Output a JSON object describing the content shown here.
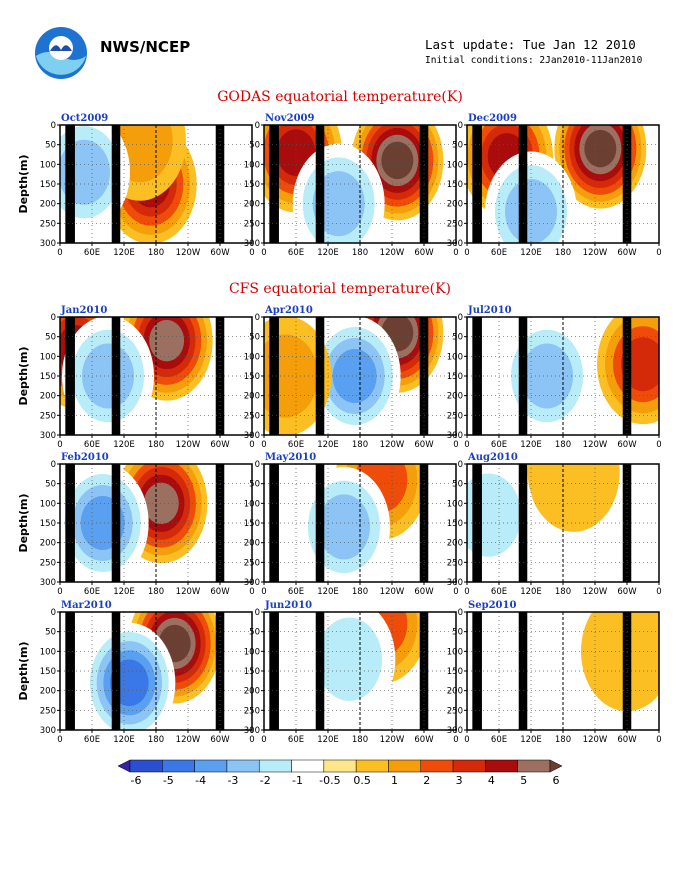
{
  "header": {
    "org": "NWS/NCEP",
    "last_update": "Last update: Tue Jan 12 2010",
    "initial_conditions": "Initial conditions: 2Jan2010-11Jan2010"
  },
  "sections": {
    "godas_title": "GODAS equatorial temperature(K)",
    "cfs_title": "CFS equatorial temperature(K)"
  },
  "axes": {
    "x_ticks": [
      "0",
      "60E",
      "120E",
      "180",
      "120W",
      "60W",
      "0"
    ],
    "y_ticks": [
      "0",
      "50",
      "100",
      "150",
      "200",
      "250",
      "300"
    ],
    "ylabel": "Depth(m)"
  },
  "colorbar": {
    "labels": [
      "-6",
      "-5",
      "-4",
      "-3",
      "-2",
      "-1",
      "-0.5",
      "0.5",
      "1",
      "2",
      "3",
      "4",
      "5",
      "6"
    ],
    "colors": [
      "#3a1fa8",
      "#2a4fd0",
      "#3a78e8",
      "#5aa0f0",
      "#8cc4f6",
      "#b8ecf8",
      "#ffffff",
      "#fde68a",
      "#fbbf24",
      "#f59e0b",
      "#ef4c0a",
      "#d42a0a",
      "#a80c0c",
      "#9c7060",
      "#6b4033"
    ]
  },
  "chart_data": [
    {
      "type": "heatmap",
      "title": "Oct2009",
      "xlim": [
        0,
        360
      ],
      "ylim": [
        0,
        300
      ],
      "anomalies": [
        {
          "lon": 170,
          "depth": 150,
          "value": 4
        },
        {
          "lon": 150,
          "depth": 40,
          "value": 1
        },
        {
          "lon": 45,
          "depth": 120,
          "value": -2
        }
      ]
    },
    {
      "type": "heatmap",
      "title": "Nov2009",
      "xlim": [
        0,
        360
      ],
      "ylim": [
        0,
        300
      ],
      "anomalies": [
        {
          "lon": 250,
          "depth": 90,
          "value": 6
        },
        {
          "lon": 60,
          "depth": 70,
          "value": 4
        },
        {
          "lon": 140,
          "depth": 200,
          "value": -2
        }
      ]
    },
    {
      "type": "heatmap",
      "title": "Dec2009",
      "xlim": [
        0,
        360
      ],
      "ylim": [
        0,
        300
      ],
      "anomalies": [
        {
          "lon": 250,
          "depth": 60,
          "value": 6
        },
        {
          "lon": 75,
          "depth": 80,
          "value": 4
        },
        {
          "lon": 120,
          "depth": 220,
          "value": -2
        }
      ]
    },
    {
      "type": "heatmap",
      "title": "Jan2010",
      "xlim": [
        0,
        360
      ],
      "ylim": [
        0,
        300
      ],
      "anomalies": [
        {
          "lon": 200,
          "depth": 60,
          "value": 5
        },
        {
          "lon": 30,
          "depth": 80,
          "value": 4
        },
        {
          "lon": 90,
          "depth": 150,
          "value": -2
        }
      ]
    },
    {
      "type": "heatmap",
      "title": "Apr2010",
      "xlim": [
        0,
        360
      ],
      "ylim": [
        0,
        300
      ],
      "anomalies": [
        {
          "lon": 250,
          "depth": 40,
          "value": 6
        },
        {
          "lon": 170,
          "depth": 150,
          "value": -3
        },
        {
          "lon": 40,
          "depth": 150,
          "value": 1
        }
      ]
    },
    {
      "type": "heatmap",
      "title": "Jul2010",
      "xlim": [
        0,
        360
      ],
      "ylim": [
        0,
        300
      ],
      "anomalies": [
        {
          "lon": 150,
          "depth": 150,
          "value": -2
        },
        {
          "lon": 330,
          "depth": 120,
          "value": 3
        }
      ]
    },
    {
      "type": "heatmap",
      "title": "Feb2010",
      "xlim": [
        0,
        360
      ],
      "ylim": [
        0,
        300
      ],
      "anomalies": [
        {
          "lon": 190,
          "depth": 100,
          "value": 5
        },
        {
          "lon": 80,
          "depth": 150,
          "value": -3
        }
      ]
    },
    {
      "type": "heatmap",
      "title": "May2010",
      "xlim": [
        0,
        360
      ],
      "ylim": [
        0,
        300
      ],
      "anomalies": [
        {
          "lon": 220,
          "depth": 40,
          "value": 2
        },
        {
          "lon": 150,
          "depth": 160,
          "value": -2
        }
      ]
    },
    {
      "type": "heatmap",
      "title": "Aug2010",
      "xlim": [
        0,
        360
      ],
      "ylim": [
        0,
        300
      ],
      "anomalies": [
        {
          "lon": 200,
          "depth": 20,
          "value": 0.7
        },
        {
          "lon": 40,
          "depth": 130,
          "value": -1
        }
      ]
    },
    {
      "type": "heatmap",
      "title": "Mar2010",
      "xlim": [
        0,
        360
      ],
      "ylim": [
        0,
        300
      ],
      "anomalies": [
        {
          "lon": 215,
          "depth": 80,
          "value": 6
        },
        {
          "lon": 130,
          "depth": 180,
          "value": -4
        }
      ]
    },
    {
      "type": "heatmap",
      "title": "Jun2010",
      "xlim": [
        0,
        360
      ],
      "ylim": [
        0,
        300
      ],
      "anomalies": [
        {
          "lon": 220,
          "depth": 30,
          "value": 2
        },
        {
          "lon": 160,
          "depth": 120,
          "value": -1
        }
      ]
    },
    {
      "type": "heatmap",
      "title": "Sep2010",
      "xlim": [
        0,
        360
      ],
      "ylim": [
        0,
        300
      ],
      "anomalies": [
        {
          "lon": 100,
          "depth": 100,
          "value": -0.7
        },
        {
          "lon": 300,
          "depth": 100,
          "value": 0.7
        }
      ]
    }
  ]
}
